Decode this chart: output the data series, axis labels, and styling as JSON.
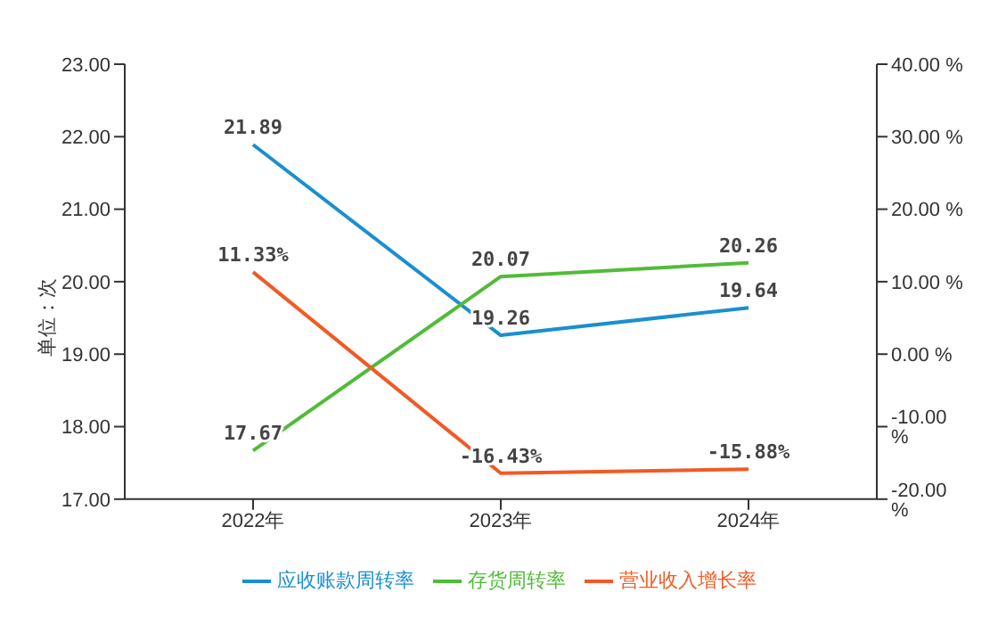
{
  "chart_data": {
    "type": "line",
    "ylabel": "单位：次",
    "categories": [
      "2022年",
      "2023年",
      "2024年"
    ],
    "series": [
      {
        "name": "应收账款周转率",
        "color": "#1a8fd0",
        "values": [
          21.89,
          19.26,
          19.64
        ],
        "value_labels": [
          "21.89",
          "19.26",
          "19.64"
        ]
      },
      {
        "name": "存货周转率",
        "color": "#52bb38",
        "values": [
          17.67,
          20.07,
          20.26
        ],
        "value_labels": [
          "17.67",
          "20.07",
          "20.26"
        ]
      },
      {
        "name": "营业收入增长率",
        "color": "#f15a24",
        "axis": "y2",
        "values": [
          11.33,
          -16.43,
          -15.88
        ],
        "value_labels": [
          "11.33%",
          "-16.43%",
          "-15.88%"
        ]
      }
    ],
    "ylim": [
      17,
      23
    ],
    "yticks": [
      {
        "value": 17,
        "label": "17.00"
      },
      {
        "value": 18,
        "label": "18.00"
      },
      {
        "value": 19,
        "label": "19.00"
      },
      {
        "value": 20,
        "label": "20.00"
      },
      {
        "value": 21,
        "label": "21.00"
      },
      {
        "value": 22,
        "label": "22.00"
      },
      {
        "value": 23,
        "label": "23.00"
      }
    ],
    "y2lim": [
      -20,
      40
    ],
    "y2ticks": [
      {
        "value": -20,
        "label": "-20.00 %"
      },
      {
        "value": -10,
        "label": "-10.00 %"
      },
      {
        "value": 0,
        "label": "0.00 %"
      },
      {
        "value": 10,
        "label": "10.00 %"
      },
      {
        "value": 20,
        "label": "20.00 %"
      },
      {
        "value": 30,
        "label": "30.00 %"
      },
      {
        "value": 40,
        "label": "40.00 %"
      }
    ],
    "legend": "bottom",
    "marker": "none",
    "line_style": "solid"
  }
}
